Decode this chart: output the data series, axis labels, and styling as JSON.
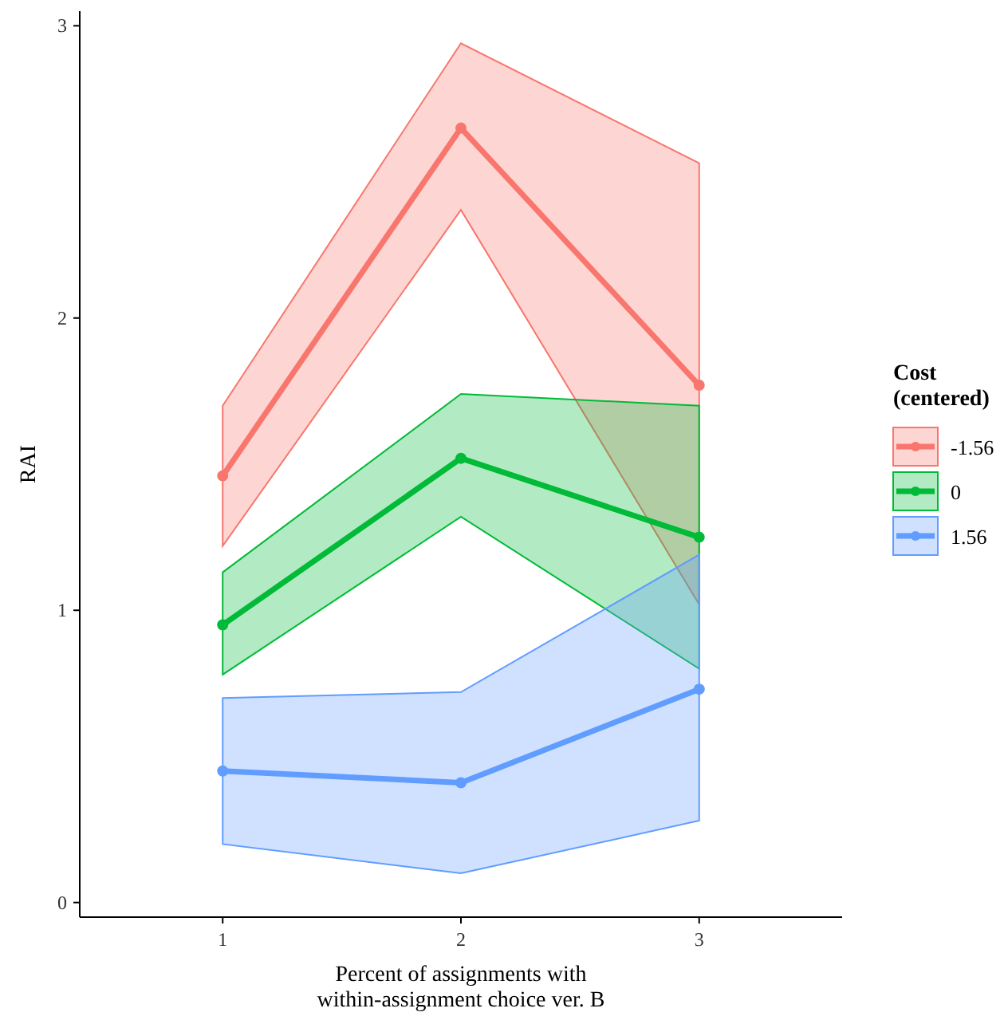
{
  "chart_data": {
    "type": "line",
    "xlabel": "Percent of assignments with within-assignment choice ver. B",
    "ylabel": "RAI",
    "legend_title": "Cost (centered)",
    "x": [
      1,
      2,
      3
    ],
    "xlim": [
      0.4,
      3.6
    ],
    "xticks": [
      1,
      2,
      3
    ],
    "ylim": [
      -0.05,
      3.05
    ],
    "yticks": [
      0,
      1,
      2,
      3
    ],
    "grid": false,
    "legend": "right",
    "marker": "circle",
    "line_style": "solid",
    "series": [
      {
        "name": "-1.56",
        "color": "#f8766d",
        "values": [
          1.46,
          2.65,
          1.77
        ],
        "lower": [
          1.22,
          2.37,
          1.02
        ],
        "upper": [
          1.7,
          2.94,
          2.53
        ]
      },
      {
        "name": "0",
        "color": "#00ba38",
        "values": [
          0.95,
          1.52,
          1.25
        ],
        "lower": [
          0.78,
          1.32,
          0.8
        ],
        "upper": [
          1.13,
          1.74,
          1.7
        ]
      },
      {
        "name": "1.56",
        "color": "#619cff",
        "values": [
          0.45,
          0.41,
          0.73
        ],
        "lower": [
          0.2,
          0.1,
          0.28
        ],
        "upper": [
          0.7,
          0.72,
          1.19
        ]
      }
    ]
  }
}
